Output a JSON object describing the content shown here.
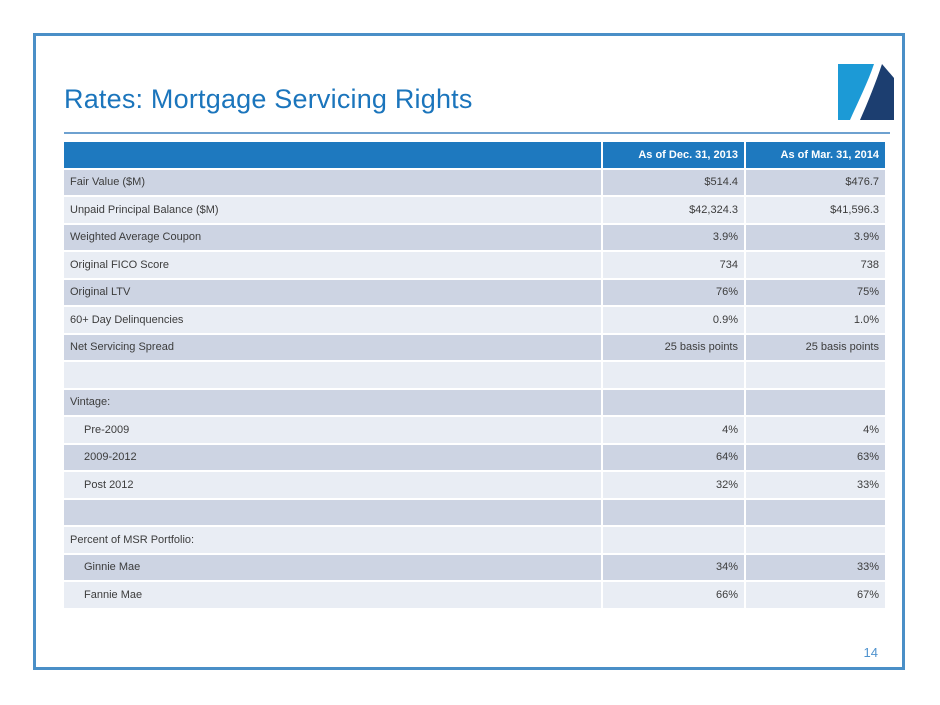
{
  "slide": {
    "title": "Rates: Mortgage Servicing Rights",
    "page_number": "14"
  },
  "logo": {
    "description": "square logo with white swoosh dividing light blue and navy areas",
    "light_blue": "#1C9AD6",
    "navy": "#1C3E70"
  },
  "table": {
    "columns": [
      {
        "label": ""
      },
      {
        "label": "As of Dec. 31, 2013"
      },
      {
        "label": "As of Mar. 31, 2014"
      }
    ],
    "rows": [
      {
        "label": "Fair Value ($M)",
        "dec2013": "$514.4",
        "mar2014": "$476.7",
        "indent": false
      },
      {
        "label": "Unpaid Principal Balance ($M)",
        "dec2013": "$42,324.3",
        "mar2014": "$41,596.3",
        "indent": false
      },
      {
        "label": "Weighted Average Coupon",
        "dec2013": "3.9%",
        "mar2014": "3.9%",
        "indent": false
      },
      {
        "label": "Original FICO Score",
        "dec2013": "734",
        "mar2014": "738",
        "indent": false
      },
      {
        "label": "Original LTV",
        "dec2013": "76%",
        "mar2014": "75%",
        "indent": false
      },
      {
        "label": "60+ Day Delinquencies",
        "dec2013": "0.9%",
        "mar2014": "1.0%",
        "indent": false
      },
      {
        "label": "Net Servicing Spread",
        "dec2013": "25 basis points",
        "mar2014": "25 basis points",
        "indent": false
      },
      {
        "label": "",
        "dec2013": "",
        "mar2014": "",
        "indent": false
      },
      {
        "label": "Vintage:",
        "dec2013": "",
        "mar2014": "",
        "indent": false
      },
      {
        "label": "Pre-2009",
        "dec2013": "4%",
        "mar2014": "4%",
        "indent": true
      },
      {
        "label": "2009-2012",
        "dec2013": "64%",
        "mar2014": "63%",
        "indent": true
      },
      {
        "label": "Post 2012",
        "dec2013": "32%",
        "mar2014": "33%",
        "indent": true
      },
      {
        "label": "",
        "dec2013": "",
        "mar2014": "",
        "indent": false
      },
      {
        "label": "Percent of MSR Portfolio:",
        "dec2013": "",
        "mar2014": "",
        "indent": false
      },
      {
        "label": "Ginnie Mae",
        "dec2013": "34%",
        "mar2014": "33%",
        "indent": true
      },
      {
        "label": "Fannie Mae",
        "dec2013": "66%",
        "mar2014": "67%",
        "indent": true
      }
    ]
  },
  "colors": {
    "header_bg": "#1E79BF",
    "row_dark": "#CDD4E3",
    "row_light": "#E9EDF4",
    "title_blue": "#1B75BC",
    "border_blue": "#4A8FC7",
    "page_number_blue": "#4F93CE"
  }
}
